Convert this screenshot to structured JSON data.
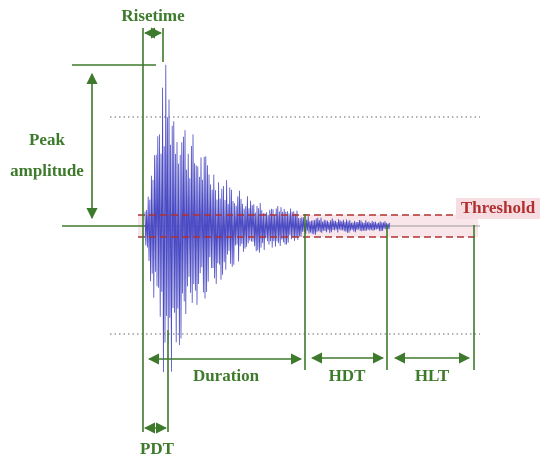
{
  "labels": {
    "risetime": "Risetime",
    "peak_amplitude": [
      "Peak",
      "amplitude"
    ],
    "threshold": "Threshold",
    "duration": "Duration",
    "hdt": "HDT",
    "hlt": "HLT",
    "pdt": "PDT"
  }
}
